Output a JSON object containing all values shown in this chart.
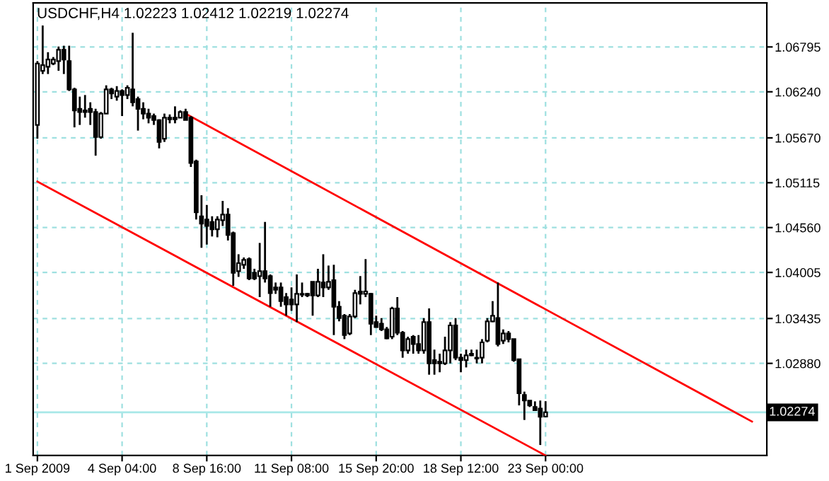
{
  "chart_data": {
    "type": "candlestick",
    "title": "USDCHF,H4 1.02223 1.02412 1.02219 1.02274",
    "categories": [
      "1 Sep 2009",
      null,
      null,
      null,
      null,
      null,
      null,
      null,
      null,
      null,
      null,
      null,
      null,
      null,
      null,
      null,
      "4 Sep 04:00",
      null,
      null,
      null,
      null,
      null,
      null,
      null,
      null,
      null,
      null,
      null,
      null,
      null,
      null,
      null,
      "8 Sep 16:00",
      null,
      null,
      null,
      null,
      null,
      null,
      null,
      null,
      null,
      null,
      null,
      null,
      null,
      null,
      null,
      "11 Sep 08:00",
      null,
      null,
      null,
      null,
      null,
      null,
      null,
      null,
      null,
      null,
      null,
      null,
      null,
      null,
      null,
      "15 Sep 20:00",
      null,
      null,
      null,
      null,
      null,
      null,
      null,
      null,
      null,
      null,
      null,
      null,
      null,
      null,
      null,
      "18 Sep 12:00",
      null,
      null,
      null,
      null,
      null,
      null,
      null,
      null,
      null,
      null,
      null,
      null,
      null,
      null,
      null,
      "23 Sep 00:00",
      null,
      null,
      null,
      null,
      null,
      null,
      null,
      null,
      null,
      null,
      null,
      null,
      null,
      null,
      null,
      null,
      null,
      null,
      null,
      null,
      null,
      null,
      null,
      null,
      null,
      null,
      null,
      null,
      null,
      null,
      null,
      null,
      null,
      null,
      null,
      null,
      null,
      null,
      null,
      null,
      null
    ],
    "ohlc": [
      [
        1.0583,
        1.0662,
        1.0566,
        1.0659
      ],
      [
        1.065,
        1.0706,
        1.0646,
        1.0657
      ],
      [
        1.0655,
        1.0673,
        1.0646,
        1.0664
      ],
      [
        1.0659,
        1.0667,
        1.0657,
        1.0664
      ],
      [
        1.0662,
        1.068,
        1.065,
        1.0676
      ],
      [
        1.0676,
        1.0681,
        1.0646,
        1.0664
      ],
      [
        1.0662,
        1.0681,
        1.0625,
        1.0627
      ],
      [
        1.0627,
        1.0629,
        1.058,
        1.0601
      ],
      [
        1.0603,
        1.0618,
        1.0583,
        1.0599
      ],
      [
        1.0601,
        1.062,
        1.0592,
        1.0599
      ],
      [
        1.0603,
        1.0611,
        1.0583,
        1.0599
      ],
      [
        1.0599,
        1.0603,
        1.0545,
        1.0568
      ],
      [
        1.0568,
        1.0599,
        1.0566,
        1.0597
      ],
      [
        1.0597,
        1.0632,
        1.0597,
        1.0627
      ],
      [
        1.0627,
        1.0629,
        1.0615,
        1.0622
      ],
      [
        1.0618,
        1.0631,
        1.0613,
        1.0625
      ],
      [
        1.0625,
        1.0627,
        1.0594,
        1.062
      ],
      [
        1.062,
        1.0632,
        1.0615,
        1.0629
      ],
      [
        1.0627,
        1.0697,
        1.0606,
        1.0611
      ],
      [
        1.0615,
        1.0618,
        1.0576,
        1.0603
      ],
      [
        1.0603,
        1.0611,
        1.059,
        1.0597
      ],
      [
        1.0597,
        1.0603,
        1.0585,
        1.0592
      ],
      [
        1.0594,
        1.0597,
        1.0583,
        1.0589
      ],
      [
        1.0589,
        1.059,
        1.0554,
        1.0562
      ],
      [
        1.0566,
        1.0597,
        1.0562,
        1.0592
      ],
      [
        1.059,
        1.0596,
        1.0585,
        1.0592
      ],
      [
        1.0592,
        1.0606,
        1.0585,
        1.059
      ],
      [
        1.0592,
        1.0601,
        1.0592,
        1.0599
      ],
      [
        1.0599,
        1.0603,
        1.0589,
        1.0589
      ],
      [
        1.0592,
        1.0594,
        1.0531,
        1.0536
      ],
      [
        1.0538,
        1.054,
        1.0466,
        1.0475
      ],
      [
        1.047,
        1.0496,
        1.0431,
        1.0461
      ],
      [
        1.0466,
        1.0484,
        1.0435,
        1.0458
      ],
      [
        1.0463,
        1.047,
        1.0445,
        1.0454
      ],
      [
        1.0454,
        1.047,
        1.0444,
        1.0466
      ],
      [
        1.0465,
        1.0489,
        1.0458,
        1.0472
      ],
      [
        1.0472,
        1.048,
        1.044,
        1.0447
      ],
      [
        1.0449,
        1.0451,
        1.0384,
        1.04
      ],
      [
        1.0402,
        1.0423,
        1.0395,
        1.0412
      ],
      [
        1.041,
        1.0419,
        1.0405,
        1.0416
      ],
      [
        1.0417,
        1.0419,
        1.0391,
        1.0393
      ],
      [
        1.04,
        1.0405,
        1.0391,
        1.0393
      ],
      [
        1.0396,
        1.0437,
        1.037,
        1.0402
      ],
      [
        1.0402,
        1.0463,
        1.0388,
        1.0393
      ],
      [
        1.0396,
        1.0398,
        1.0358,
        1.0375
      ],
      [
        1.0382,
        1.0388,
        1.0374,
        1.0379
      ],
      [
        1.0382,
        1.0388,
        1.0358,
        1.0365
      ],
      [
        1.037,
        1.0375,
        1.0347,
        1.0361
      ],
      [
        1.0367,
        1.0382,
        1.0353,
        1.0361
      ],
      [
        1.0361,
        1.0398,
        1.0339,
        1.0374
      ],
      [
        1.0373,
        1.0388,
        1.037,
        1.0374
      ],
      [
        1.0374,
        1.0375,
        1.037,
        1.0372
      ],
      [
        1.0389,
        1.0389,
        1.0347,
        1.0372
      ],
      [
        1.0372,
        1.0405,
        1.037,
        1.0389
      ],
      [
        1.0388,
        1.0423,
        1.037,
        1.0382
      ],
      [
        1.0382,
        1.0409,
        1.0379,
        1.0389
      ],
      [
        1.0391,
        1.041,
        1.0323,
        1.0358
      ],
      [
        1.0358,
        1.0365,
        1.034,
        1.0344
      ],
      [
        1.0347,
        1.0349,
        1.0318,
        1.0323
      ],
      [
        1.0325,
        1.0349,
        1.0323,
        1.0346
      ],
      [
        1.0346,
        1.0379,
        1.0344,
        1.0375
      ],
      [
        1.0377,
        1.0396,
        1.0361,
        1.0374
      ],
      [
        1.0374,
        1.0417,
        1.037,
        1.0377
      ],
      [
        1.0374,
        1.0375,
        1.0323,
        1.0337
      ],
      [
        1.0339,
        1.0347,
        1.0332,
        1.0333
      ],
      [
        1.0337,
        1.0344,
        1.0328,
        1.033
      ],
      [
        1.033,
        1.0333,
        1.0318,
        1.0319
      ],
      [
        1.0321,
        1.0358,
        1.0318,
        1.0356
      ],
      [
        1.0356,
        1.037,
        1.0323,
        1.0326
      ],
      [
        1.0326,
        1.0328,
        1.0295,
        1.0304
      ],
      [
        1.0304,
        1.0321,
        1.03,
        1.0318
      ],
      [
        1.0321,
        1.0323,
        1.03,
        1.0312
      ],
      [
        1.0312,
        1.0323,
        1.03,
        1.0304
      ],
      [
        1.0304,
        1.0344,
        1.03,
        1.0339
      ],
      [
        1.0339,
        1.0356,
        1.0274,
        1.0288
      ],
      [
        1.0292,
        1.0305,
        1.0274,
        1.0288
      ],
      [
        1.029,
        1.03,
        1.0277,
        1.0288
      ],
      [
        1.0288,
        1.0321,
        1.0286,
        1.0304
      ],
      [
        1.0304,
        1.0339,
        1.0288,
        1.0335
      ],
      [
        1.0335,
        1.0344,
        1.0292,
        1.0295
      ],
      [
        1.0295,
        1.03,
        1.0277,
        1.0292
      ],
      [
        1.0292,
        1.0305,
        1.0283,
        1.0298
      ],
      [
        1.03,
        1.0305,
        1.0297,
        1.0298
      ],
      [
        1.0295,
        1.0305,
        1.0288,
        1.0294
      ],
      [
        1.0295,
        1.0318,
        1.0288,
        1.0314
      ],
      [
        1.0316,
        1.0344,
        1.0314,
        1.034
      ],
      [
        1.034,
        1.0365,
        1.0339,
        1.0347
      ],
      [
        1.0344,
        1.0388,
        1.0309,
        1.0312
      ],
      [
        1.0316,
        1.033,
        1.0312,
        1.0325
      ],
      [
        1.0325,
        1.0328,
        1.0314,
        1.0318
      ],
      [
        1.0318,
        1.0318,
        1.029,
        1.0292
      ],
      [
        1.0293,
        1.0293,
        1.0236,
        1.0251
      ],
      [
        1.0249,
        1.0253,
        1.0218,
        1.0242
      ],
      [
        1.0242,
        1.0242,
        1.0234,
        1.0236
      ],
      [
        1.0234,
        1.0241,
        1.023,
        1.023
      ],
      [
        1.0232,
        1.0242,
        1.0187,
        1.0222
      ],
      [
        1.02223,
        1.02412,
        1.02219,
        1.02274
      ],
      null,
      null,
      null,
      null,
      null,
      null,
      null,
      null,
      null,
      null,
      null,
      null,
      null,
      null,
      null,
      null,
      null,
      null,
      null,
      null,
      null,
      null,
      null,
      null,
      null,
      null,
      null,
      null,
      null,
      null,
      null,
      null,
      null,
      null,
      null,
      null,
      null,
      null,
      null,
      null,
      null
    ],
    "series": [
      {
        "type": "line",
        "color": "#ff0000",
        "line_style": "solid",
        "marker": "none",
        "values": [
          null,
          null,
          null,
          null,
          null,
          null,
          null,
          null,
          null,
          null,
          null,
          null,
          null,
          null,
          null,
          null,
          null,
          null,
          null,
          null,
          null,
          null,
          null,
          null,
          null,
          null,
          null,
          null,
          1.0597,
          null,
          null,
          null,
          null,
          null,
          null,
          null,
          null,
          null,
          null,
          null,
          null,
          null,
          null,
          null,
          null,
          null,
          null,
          null,
          null,
          null,
          null,
          null,
          null,
          null,
          null,
          null,
          null,
          null,
          null,
          null,
          null,
          null,
          null,
          null,
          null,
          null,
          null,
          null,
          null,
          null,
          null,
          null,
          null,
          null,
          null,
          null,
          null,
          null,
          null,
          null,
          null,
          null,
          null,
          null,
          null,
          null,
          null,
          null,
          null,
          null,
          null,
          null,
          null,
          null,
          null,
          null,
          null,
          null,
          null,
          null,
          null,
          null,
          null,
          null,
          null,
          null,
          null,
          null,
          null,
          null,
          null,
          null,
          null,
          null,
          null,
          null,
          null,
          null,
          null,
          null,
          null,
          null,
          null,
          null,
          null,
          null,
          null,
          null,
          null,
          null,
          null,
          null,
          null,
          null,
          null,
          1.0216,
          null,
          null
        ]
      },
      {
        "type": "line",
        "color": "#ff0000",
        "line_style": "solid",
        "marker": "none",
        "values": [
          1.0513,
          null,
          null,
          null,
          null,
          null,
          null,
          null,
          null,
          null,
          null,
          null,
          null,
          null,
          null,
          null,
          null,
          null,
          null,
          null,
          null,
          null,
          null,
          null,
          null,
          null,
          null,
          null,
          null,
          null,
          null,
          null,
          null,
          null,
          null,
          null,
          null,
          null,
          null,
          null,
          null,
          null,
          null,
          null,
          null,
          null,
          null,
          null,
          null,
          null,
          null,
          null,
          null,
          null,
          null,
          null,
          null,
          null,
          null,
          null,
          null,
          null,
          null,
          null,
          null,
          null,
          null,
          null,
          null,
          null,
          null,
          null,
          null,
          null,
          null,
          null,
          null,
          null,
          null,
          null,
          null,
          null,
          null,
          null,
          null,
          null,
          null,
          null,
          null,
          null,
          null,
          null,
          null,
          null,
          null,
          null,
          1.0174,
          null,
          null,
          null,
          null,
          null,
          null,
          null,
          null,
          null,
          null,
          null,
          null,
          null,
          null,
          null,
          null,
          null,
          null,
          null,
          null,
          null,
          null,
          null,
          null,
          null,
          null,
          null,
          null,
          null,
          null,
          null,
          null,
          null,
          null,
          null,
          null,
          null,
          null,
          null,
          null,
          null
        ]
      }
    ],
    "ylim": [
      1.0174,
      1.0734
    ],
    "yticks": [
      1.06795,
      {
        "value": 1.0624,
        "label": "1.06240"
      },
      {
        "value": 1.0567,
        "label": "1.05670"
      },
      1.05115,
      {
        "value": 1.0456,
        "label": "1.04560"
      },
      1.04005,
      1.03435,
      {
        "value": 1.0288,
        "label": "1.02880"
      }
    ],
    "ref_lines": [
      {
        "axis": "y",
        "value": 1.02274,
        "label": "1.02274",
        "color": "#a8e8e8",
        "line_style": "solid"
      }
    ],
    "grid": true,
    "legend": false
  }
}
